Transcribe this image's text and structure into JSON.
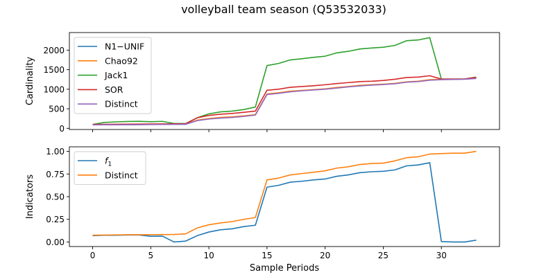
{
  "figure": {
    "title": "volleyball team season (Q53532033)"
  },
  "chart_data": [
    {
      "type": "line",
      "title": "",
      "xlabel": "",
      "ylabel": "Cardinality",
      "xlim": [
        -2,
        35
      ],
      "ylim": [
        -30,
        2450
      ],
      "xticks": [
        0,
        5,
        10,
        15,
        20,
        25,
        30
      ],
      "yticks": [
        0,
        500,
        1000,
        1500,
        2000
      ],
      "xtick_labels_visible": false,
      "grid": false,
      "legend": "top-left",
      "x": [
        0,
        1,
        2,
        3,
        4,
        5,
        6,
        7,
        8,
        9,
        10,
        11,
        12,
        13,
        14,
        15,
        16,
        17,
        18,
        19,
        20,
        21,
        22,
        23,
        24,
        25,
        26,
        27,
        28,
        29,
        30,
        31,
        32,
        33
      ],
      "series": [
        {
          "name": "N1−UNIF",
          "color": "#1f77b4",
          "values": [
            90,
            90,
            92,
            93,
            95,
            100,
            102,
            103,
            104,
            200,
            240,
            265,
            280,
            310,
            345,
            870,
            900,
            940,
            965,
            985,
            1005,
            1035,
            1065,
            1090,
            1110,
            1125,
            1145,
            1185,
            1200,
            1235,
            1250,
            1255,
            1260,
            1280
          ]
        },
        {
          "name": "Chao92",
          "color": "#ff7f0e",
          "values": [
            95,
            95,
            97,
            98,
            100,
            105,
            108,
            110,
            112,
            210,
            250,
            280,
            295,
            320,
            350,
            880,
            910,
            950,
            970,
            990,
            1010,
            1045,
            1070,
            1100,
            1115,
            1130,
            1150,
            1190,
            1205,
            1245,
            1255,
            1258,
            1262,
            1285
          ]
        },
        {
          "name": "Jack1",
          "color": "#2ca02c",
          "values": [
            100,
            150,
            165,
            175,
            180,
            168,
            178,
            125,
            122,
            270,
            370,
            420,
            440,
            480,
            545,
            1605,
            1660,
            1750,
            1780,
            1815,
            1845,
            1930,
            1970,
            2030,
            2055,
            2075,
            2120,
            2240,
            2260,
            2320,
            1260,
            1260,
            1262,
            1310
          ]
        },
        {
          "name": "SOR",
          "color": "#d62728",
          "values": [
            100,
            102,
            104,
            106,
            108,
            110,
            112,
            115,
            118,
            270,
            330,
            360,
            380,
            410,
            440,
            975,
            1000,
            1050,
            1070,
            1090,
            1115,
            1145,
            1170,
            1195,
            1205,
            1225,
            1255,
            1300,
            1310,
            1345,
            1260,
            1260,
            1262,
            1305
          ]
        },
        {
          "name": "Distinct",
          "color": "#9467bd",
          "values": [
            88,
            90,
            90,
            92,
            94,
            98,
            100,
            102,
            104,
            198,
            238,
            262,
            278,
            305,
            340,
            865,
            895,
            935,
            960,
            980,
            1000,
            1030,
            1060,
            1085,
            1105,
            1120,
            1140,
            1180,
            1195,
            1230,
            1245,
            1250,
            1255,
            1275
          ]
        }
      ]
    },
    {
      "type": "line",
      "title": "",
      "xlabel": "Sample Periods",
      "ylabel": "Indicators",
      "xlim": [
        -2,
        35
      ],
      "ylim": [
        -0.05,
        1.05
      ],
      "xticks": [
        0,
        5,
        10,
        15,
        20,
        25,
        30
      ],
      "xtick_labels": [
        "0",
        "5",
        "10",
        "15",
        "20",
        "25",
        "30"
      ],
      "yticks": [
        0,
        0.25,
        0.5,
        0.75,
        1.0
      ],
      "ytick_labels": [
        "0.00",
        "0.25",
        "0.50",
        "0.75",
        "1.00"
      ],
      "grid": false,
      "legend": "top-left",
      "x": [
        0,
        1,
        2,
        3,
        4,
        5,
        6,
        7,
        8,
        9,
        10,
        11,
        12,
        13,
        14,
        15,
        16,
        17,
        18,
        19,
        20,
        21,
        22,
        23,
        24,
        25,
        26,
        27,
        28,
        29,
        30,
        31,
        32,
        33
      ],
      "series": [
        {
          "name": "f1",
          "legend_label": {
            "base": "f",
            "sub": "1"
          },
          "color": "#1f77b4",
          "values": [
            0.07,
            0.075,
            0.075,
            0.077,
            0.077,
            0.063,
            0.065,
            0.0,
            0.01,
            0.07,
            0.11,
            0.135,
            0.145,
            0.17,
            0.185,
            0.605,
            0.625,
            0.66,
            0.67,
            0.685,
            0.695,
            0.725,
            0.74,
            0.765,
            0.775,
            0.78,
            0.795,
            0.84,
            0.85,
            0.875,
            0.005,
            0.0,
            0.0,
            0.02
          ]
        },
        {
          "name": "Distinct",
          "color": "#ff7f0e",
          "values": [
            0.075,
            0.077,
            0.078,
            0.08,
            0.08,
            0.08,
            0.082,
            0.083,
            0.09,
            0.155,
            0.19,
            0.21,
            0.225,
            0.25,
            0.27,
            0.685,
            0.705,
            0.74,
            0.755,
            0.77,
            0.785,
            0.815,
            0.83,
            0.855,
            0.865,
            0.87,
            0.895,
            0.93,
            0.94,
            0.97,
            0.975,
            0.98,
            0.98,
            1.0
          ]
        }
      ]
    }
  ]
}
